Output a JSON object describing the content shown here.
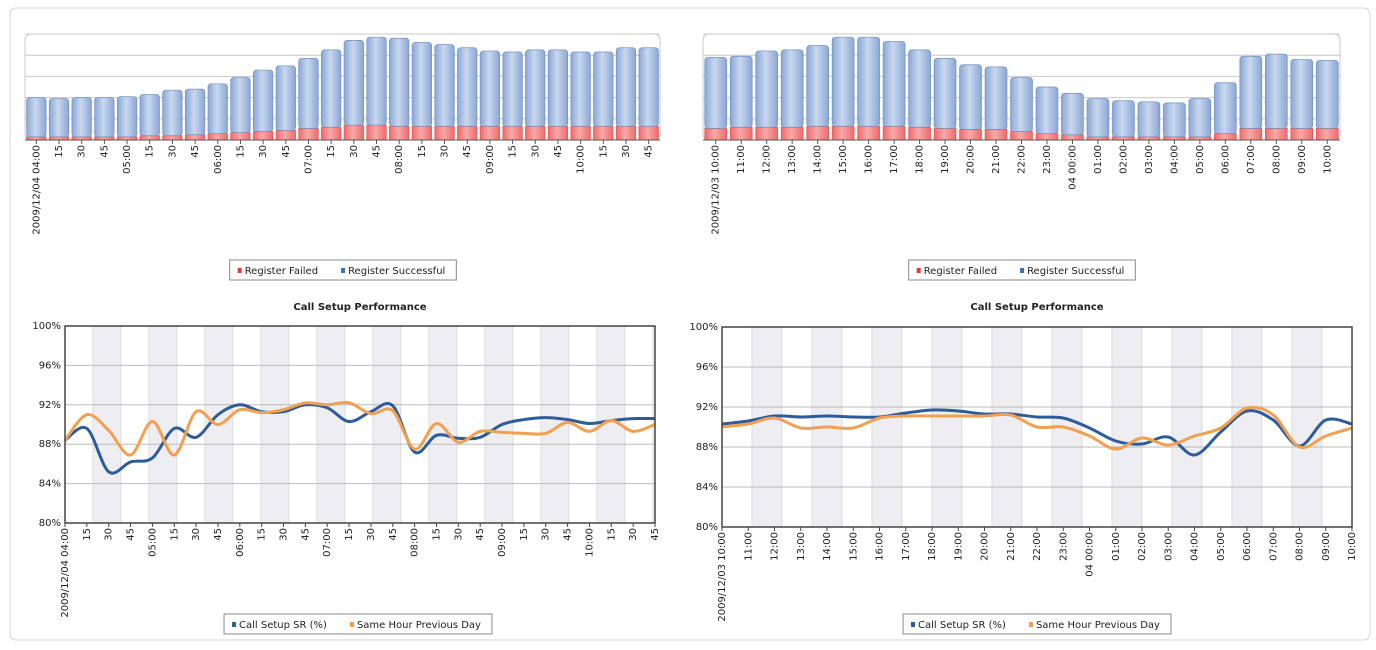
{
  "chart_data": [
    {
      "type": "bar",
      "stacked": true,
      "grid": true,
      "categories": [
        "2009/12/04 04:00",
        "15",
        "30",
        "45",
        "05:00",
        "15",
        "30",
        "45",
        "06:00",
        "15",
        "30",
        "45",
        "07:00",
        "15",
        "30",
        "45",
        "08:00",
        "15",
        "30",
        "45",
        "09:00",
        "15",
        "30",
        "45",
        "10:00",
        "15",
        "30",
        "45"
      ],
      "series": [
        {
          "name": "Register Failed",
          "color": "#e8383d",
          "values": [
            3,
            3,
            3,
            3,
            3,
            4,
            4,
            5,
            6,
            7,
            8,
            9,
            11,
            12,
            14,
            14,
            13,
            13,
            13,
            13,
            13,
            13,
            13,
            13,
            13,
            13,
            13,
            13
          ]
        },
        {
          "name": "Register Successful",
          "color": "#3b6eb2",
          "values": [
            37,
            36,
            37,
            37,
            38,
            39,
            43,
            43,
            47,
            52,
            58,
            61,
            66,
            73,
            80,
            83,
            83,
            79,
            77,
            74,
            71,
            70,
            72,
            72,
            70,
            70,
            74,
            74
          ]
        }
      ],
      "ylim": [
        0,
        100
      ],
      "yticks": [
        0,
        20,
        40,
        60,
        80,
        100
      ]
    },
    {
      "type": "bar",
      "stacked": true,
      "grid": true,
      "categories": [
        "2009/12/03 10:00",
        "11:00",
        "12:00",
        "13:00",
        "14:00",
        "15:00",
        "16:00",
        "17:00",
        "18:00",
        "19:00",
        "20:00",
        "21:00",
        "22:00",
        "23:00",
        "04 00:00",
        "01:00",
        "02:00",
        "03:00",
        "04:00",
        "05:00",
        "06:00",
        "07:00",
        "08:00",
        "09:00",
        "10:00"
      ],
      "series": [
        {
          "name": "Register Failed",
          "color": "#e8383d",
          "values": [
            11,
            12,
            12,
            12,
            13,
            13,
            13,
            13,
            12,
            11,
            10,
            10,
            8,
            6,
            5,
            3,
            3,
            3,
            3,
            3,
            6,
            11,
            11,
            11,
            11
          ]
        },
        {
          "name": "Register Successful",
          "color": "#3b6eb2",
          "values": [
            67,
            67,
            72,
            73,
            76,
            84,
            84,
            80,
            73,
            66,
            61,
            59,
            51,
            44,
            39,
            36,
            34,
            33,
            32,
            36,
            48,
            68,
            70,
            65,
            64
          ]
        }
      ],
      "ylim": [
        0,
        100
      ],
      "yticks": [
        0,
        20,
        40,
        60,
        80,
        100
      ]
    },
    {
      "type": "line",
      "title": "Call Setup Performance",
      "grid": true,
      "categories": [
        "2009/12/04 04:00",
        "15",
        "30",
        "45",
        "05:00",
        "15",
        "30",
        "45",
        "06:00",
        "15",
        "30",
        "45",
        "07:00",
        "15",
        "30",
        "45",
        "08:00",
        "15",
        "30",
        "45",
        "09:00",
        "15",
        "30",
        "45",
        "10:00",
        "15",
        "30",
        "45"
      ],
      "series": [
        {
          "name": "Call Setup SR (%)",
          "color": "#2e5b9a",
          "values": [
            88.4,
            89.6,
            85.2,
            86.2,
            86.6,
            89.6,
            88.7,
            91.0,
            92.0,
            91.3,
            91.3,
            92.0,
            91.7,
            90.3,
            91.3,
            91.9,
            87.2,
            88.9,
            88.6,
            88.7,
            90.0,
            90.5,
            90.7,
            90.5,
            90.1,
            90.4,
            90.6,
            90.6
          ]
        },
        {
          "name": "Same Hour Previous Day",
          "color": "#f0a050",
          "values": [
            88.4,
            91.0,
            89.4,
            86.9,
            90.3,
            86.9,
            91.3,
            90.0,
            91.5,
            91.2,
            91.5,
            92.2,
            92.0,
            92.2,
            91.1,
            91.4,
            87.5,
            90.1,
            88.2,
            89.3,
            89.2,
            89.1,
            89.1,
            90.2,
            89.3,
            90.4,
            89.3,
            90.0
          ]
        }
      ],
      "ylim": [
        80,
        100
      ],
      "yticks": [
        {
          "value": 80,
          "label": "80%"
        },
        {
          "value": 84,
          "label": "84%"
        },
        {
          "value": 88,
          "label": "88%"
        },
        {
          "value": 92,
          "label": "92%"
        },
        {
          "value": 96,
          "label": "96%"
        },
        {
          "value": 100,
          "label": "100%"
        }
      ]
    },
    {
      "type": "line",
      "title": "Call Setup Performance",
      "grid": true,
      "categories": [
        "2009/12/03 10:00",
        "11:00",
        "12:00",
        "13:00",
        "14:00",
        "15:00",
        "16:00",
        "17:00",
        "18:00",
        "19:00",
        "20:00",
        "21:00",
        "22:00",
        "23:00",
        "04 00:00",
        "01:00",
        "02:00",
        "03:00",
        "04:00",
        "05:00",
        "06:00",
        "07:00",
        "08:00",
        "09:00",
        "10:00"
      ],
      "series": [
        {
          "name": "Call Setup SR (%)",
          "color": "#2e5b9a",
          "values": [
            90.3,
            90.6,
            91.1,
            91.0,
            91.1,
            91.0,
            91.0,
            91.4,
            91.7,
            91.6,
            91.3,
            91.3,
            91.0,
            90.9,
            89.9,
            88.6,
            88.3,
            89.0,
            87.2,
            89.5,
            91.6,
            90.7,
            88.1,
            90.7,
            90.3
          ]
        },
        {
          "name": "Same Hour Previous Day",
          "color": "#f0a050",
          "values": [
            90.0,
            90.3,
            90.9,
            89.9,
            90.0,
            89.9,
            90.9,
            91.1,
            91.1,
            91.1,
            91.1,
            91.2,
            90.0,
            90.0,
            89.1,
            87.8,
            88.9,
            88.2,
            89.1,
            89.9,
            91.9,
            91.2,
            88.0,
            89.1,
            89.9
          ]
        }
      ],
      "ylim": [
        80,
        100
      ],
      "yticks": [
        {
          "value": 80,
          "label": "80%"
        },
        {
          "value": 84,
          "label": "84%"
        },
        {
          "value": 88,
          "label": "88%"
        },
        {
          "value": 92,
          "label": "92%"
        },
        {
          "value": 96,
          "label": "96%"
        },
        {
          "value": 100,
          "label": "100%"
        }
      ]
    }
  ]
}
